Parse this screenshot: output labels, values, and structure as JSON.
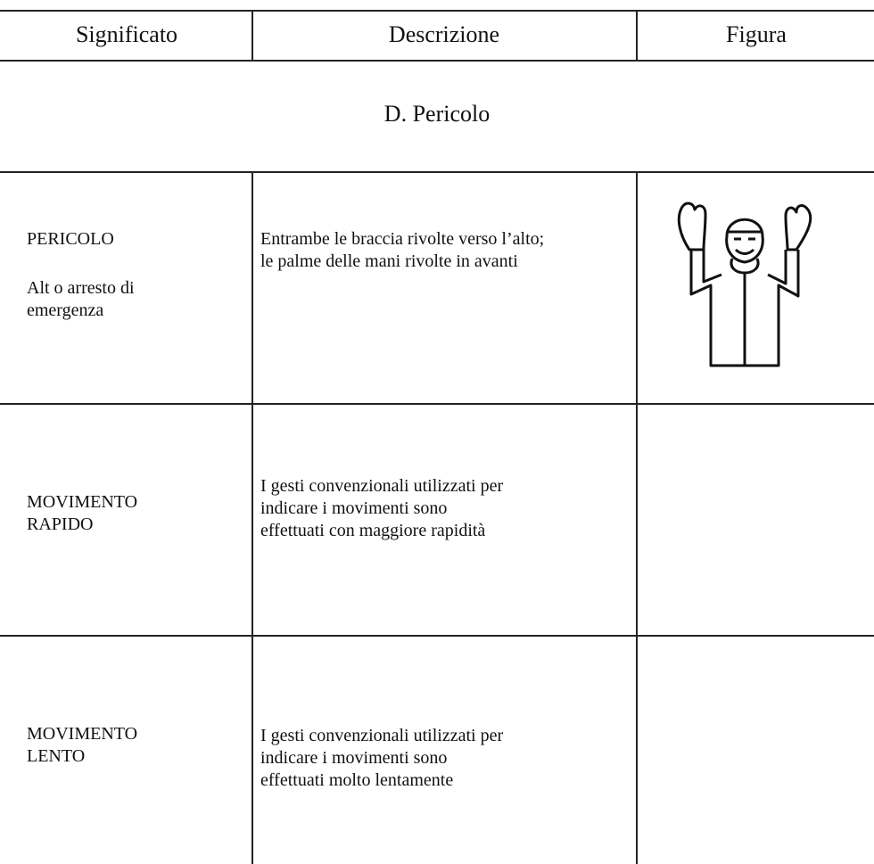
{
  "header": {
    "columns": [
      "Significato",
      "Descrizione",
      "Figura"
    ]
  },
  "section": {
    "title": "D. Pericolo"
  },
  "rows": [
    {
      "significato": [
        [
          "PERICOLO"
        ],
        [
          "Alt o arresto di",
          "emergenza"
        ]
      ],
      "descrizione": [
        "Entrambe le braccia rivolte verso l’alto;",
        "le palme delle mani rivolte in avanti"
      ]
    },
    {
      "significato": [
        [
          "MOVIMENTO",
          "RAPIDO"
        ]
      ],
      "descrizione": [
        "I gesti convenzionali utilizzati per",
        "indicare i movimenti sono",
        "effettuati con maggiore rapidità"
      ]
    },
    {
      "significato": [
        [
          "MOVIMENTO",
          "LENTO"
        ]
      ],
      "descrizione": [
        "I gesti convenzionali utilizzati per",
        "indicare i movimenti sono",
        "effettuati molto lentamente"
      ]
    }
  ]
}
